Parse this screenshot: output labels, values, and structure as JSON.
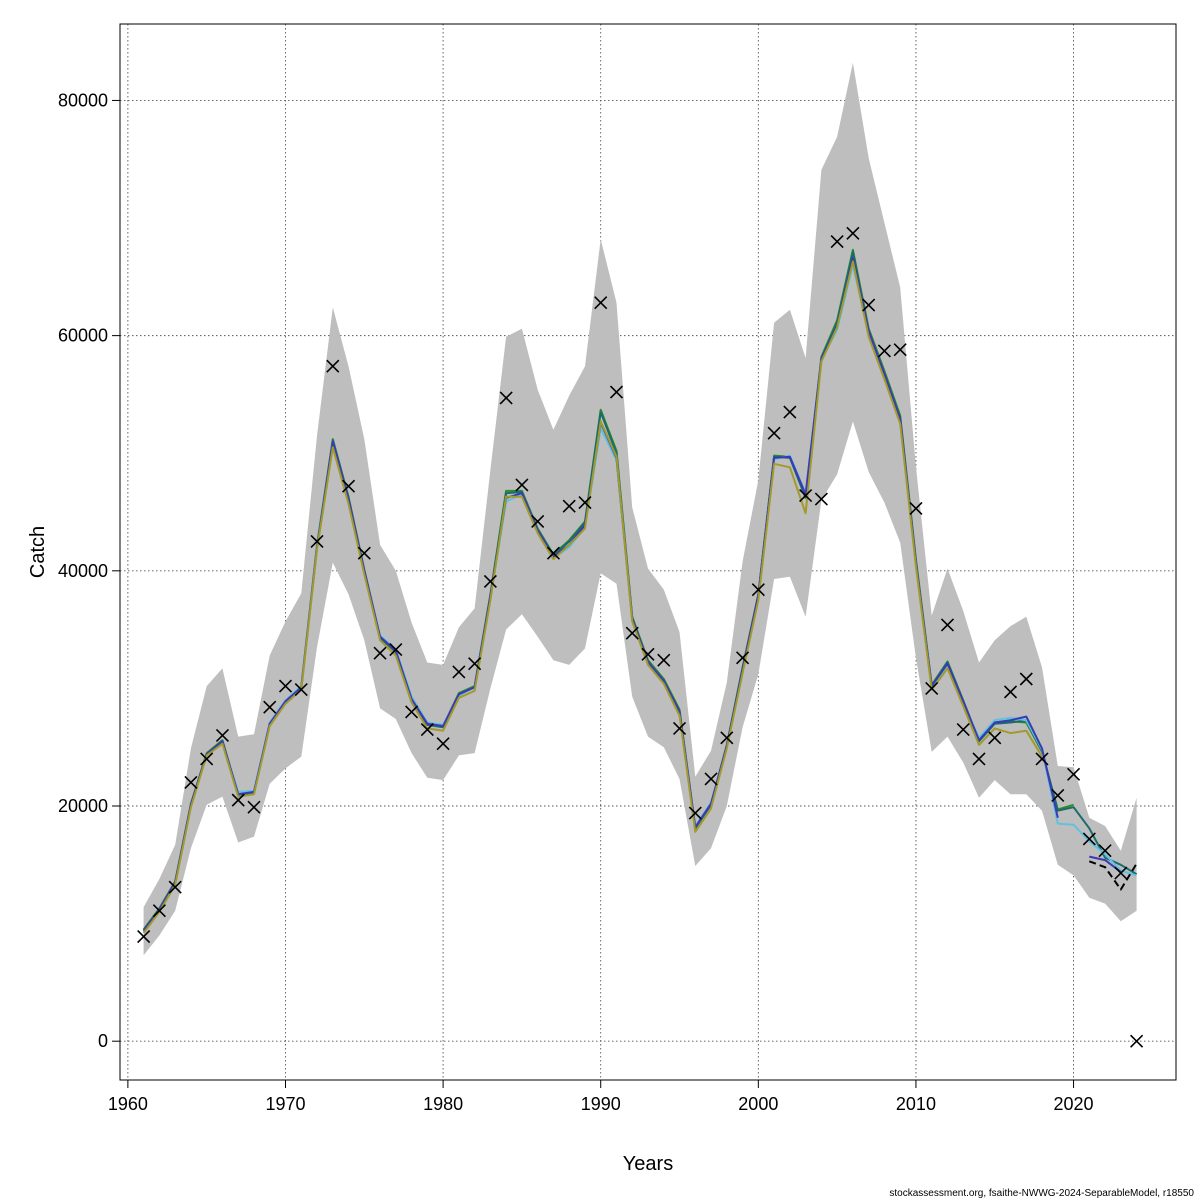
{
  "chart_data": {
    "type": "line",
    "xlabel": "Years",
    "ylabel": "Catch",
    "xlim": [
      1959.5,
      2026.5
    ],
    "ylim": [
      -3300,
      86500
    ],
    "xticks": [
      1960,
      1970,
      1980,
      1990,
      2000,
      2010,
      2020
    ],
    "yticks": [
      0,
      20000,
      40000,
      60000,
      80000
    ],
    "grid": true,
    "band_color": "#bebebe",
    "observed_marker": "x",
    "years": [
      1961,
      1962,
      1963,
      1964,
      1965,
      1966,
      1967,
      1968,
      1969,
      1970,
      1971,
      1972,
      1973,
      1974,
      1975,
      1976,
      1977,
      1978,
      1979,
      1980,
      1981,
      1982,
      1983,
      1984,
      1985,
      1986,
      1987,
      1988,
      1989,
      1990,
      1991,
      1992,
      1993,
      1994,
      1995,
      1996,
      1997,
      1998,
      1999,
      2000,
      2001,
      2002,
      2003,
      2004,
      2005,
      2006,
      2007,
      2008,
      2009,
      2010,
      2011,
      2012,
      2013,
      2014,
      2015,
      2016,
      2017,
      2018,
      2019,
      2020,
      2021,
      2022,
      2023,
      2024
    ],
    "upper": [
      11400,
      13800,
      16700,
      24900,
      30200,
      31700,
      25900,
      26100,
      32800,
      35700,
      38100,
      51500,
      62400,
      57400,
      51200,
      42200,
      40000,
      35600,
      32200,
      32000,
      35200,
      36800,
      48600,
      59900,
      60600,
      55400,
      52000,
      54900,
      57400,
      68200,
      62800,
      45400,
      40200,
      38400,
      34800,
      22500,
      24700,
      30500,
      40800,
      47700,
      61100,
      62200,
      58100,
      74100,
      76900,
      83200,
      75100,
      69600,
      64100,
      48900,
      36200,
      40200,
      36600,
      32200,
      34100,
      35300,
      36100,
      31800,
      23400,
      23300,
      19000,
      18300,
      16200,
      20700
    ],
    "lower": [
      7300,
      9000,
      11100,
      16400,
      20100,
      20800,
      16900,
      17400,
      21900,
      23200,
      24200,
      33500,
      40700,
      38000,
      34100,
      28300,
      27400,
      24500,
      22400,
      22200,
      24300,
      24500,
      30000,
      35000,
      36300,
      34400,
      32400,
      32000,
      33400,
      39800,
      38900,
      29300,
      25900,
      25000,
      22300,
      14900,
      16400,
      20000,
      26700,
      31200,
      39300,
      39500,
      36100,
      46000,
      48200,
      52700,
      48400,
      45800,
      42400,
      32600,
      24600,
      25900,
      23700,
      20700,
      22200,
      21000,
      21000,
      19600,
      15000,
      14100,
      12200,
      11700,
      10200,
      11100
    ],
    "observed": [
      8900,
      11100,
      13100,
      22000,
      24000,
      26000,
      20500,
      19900,
      28400,
      30200,
      29900,
      42500,
      57400,
      47200,
      41500,
      33000,
      33300,
      28000,
      26500,
      25300,
      31400,
      32100,
      39100,
      54700,
      47300,
      44200,
      41500,
      45500,
      45800,
      62800,
      55200,
      34700,
      32900,
      32400,
      26600,
      19400,
      22300,
      25800,
      32600,
      38400,
      51700,
      53500,
      46400,
      46100,
      68000,
      68700,
      62600,
      58700,
      58800,
      45300,
      30000,
      35400,
      26500,
      24000,
      25800,
      29700,
      30800,
      24000,
      20900,
      22700,
      17200,
      16200,
      14300,
      0
    ],
    "series": [
      {
        "color": "#2b8c2b",
        "values": [
          9500,
          11300,
          13600,
          20200,
          24500,
          25600,
          21000,
          21200,
          27000,
          28900,
          30100,
          42200,
          51200,
          46300,
          40100,
          34400,
          33200,
          29100,
          27000,
          26800,
          29600,
          30200,
          38000,
          46800,
          46800,
          43600,
          41400,
          42600,
          44200,
          53700,
          50200,
          36100,
          32400,
          30800,
          28200,
          18200,
          20200,
          25200,
          31800,
          38000,
          49800,
          49700,
          46400,
          58200,
          61300,
          67300,
          60600,
          57000,
          53200,
          41000,
          30300,
          32300,
          29000,
          25600,
          27100,
          27200,
          27100,
          24600,
          19700,
          20100,
          null,
          null,
          null,
          null
        ]
      },
      {
        "color": "#1b6b6b",
        "values": [
          9400,
          11200,
          13500,
          20100,
          24400,
          25500,
          20900,
          21100,
          26900,
          28800,
          30000,
          42000,
          51100,
          46200,
          40000,
          34300,
          33100,
          29000,
          26900,
          26700,
          29500,
          30100,
          37900,
          46600,
          46700,
          43500,
          41300,
          42500,
          44100,
          53500,
          50000,
          36000,
          32300,
          30700,
          28100,
          18100,
          20100,
          25100,
          31700,
          37900,
          49700,
          49600,
          46200,
          58000,
          61100,
          67100,
          60300,
          56800,
          53000,
          40800,
          30200,
          32200,
          28900,
          25500,
          27000,
          27100,
          27300,
          24700,
          19600,
          19900,
          18100,
          15600,
          15000,
          14200
        ]
      },
      {
        "color": "#5fc2e0",
        "values": [
          9300,
          11100,
          13400,
          20000,
          24300,
          25400,
          21200,
          21300,
          27100,
          29000,
          30200,
          42100,
          50900,
          46000,
          39900,
          34500,
          33300,
          29300,
          27100,
          26900,
          29400,
          30100,
          37700,
          45900,
          46500,
          43300,
          41100,
          42000,
          43700,
          52100,
          49400,
          35800,
          32100,
          30500,
          27900,
          18300,
          20300,
          25000,
          31500,
          37800,
          49500,
          49800,
          46600,
          57900,
          60500,
          66000,
          60200,
          56500,
          52700,
          40600,
          30100,
          32000,
          28800,
          25800,
          27300,
          27500,
          27300,
          24800,
          18500,
          18400,
          17000,
          15900,
          14500,
          14100
        ]
      },
      {
        "color": "#3a3ab8",
        "values": [
          9400,
          11200,
          13500,
          20100,
          24400,
          25500,
          21000,
          21200,
          27000,
          28900,
          30100,
          42000,
          51000,
          46100,
          40000,
          34400,
          33200,
          29100,
          27000,
          26800,
          29500,
          30100,
          37800,
          46200,
          46600,
          43400,
          41200,
          42200,
          43900,
          52600,
          49600,
          35900,
          32200,
          30600,
          28000,
          18200,
          20200,
          25100,
          31600,
          37900,
          49600,
          49700,
          46500,
          58000,
          60800,
          66600,
          60400,
          56700,
          52900,
          40700,
          30200,
          32100,
          28900,
          25600,
          27100,
          27300,
          27600,
          24900,
          19000,
          null,
          15700,
          15400,
          14400,
          null
        ]
      },
      {
        "color": "#a39a2b",
        "values": [
          9200,
          11000,
          13300,
          19900,
          24300,
          25300,
          20800,
          21000,
          26800,
          28700,
          29900,
          41800,
          50500,
          45700,
          39700,
          34100,
          32800,
          28800,
          26600,
          26400,
          29200,
          29800,
          37500,
          46300,
          46300,
          43200,
          41000,
          42200,
          43600,
          52700,
          49700,
          35700,
          32000,
          30400,
          27700,
          17800,
          19800,
          24900,
          31300,
          37500,
          49100,
          48800,
          44900,
          57800,
          60700,
          66300,
          59900,
          56300,
          52500,
          40400,
          29900,
          31700,
          28500,
          25200,
          26600,
          26200,
          26400,
          24200,
          null,
          null,
          null,
          null,
          null,
          null
        ]
      },
      {
        "color": "#000000",
        "dash": true,
        "values": [
          null,
          null,
          null,
          null,
          null,
          null,
          null,
          null,
          null,
          null,
          null,
          null,
          null,
          null,
          null,
          null,
          null,
          null,
          null,
          null,
          null,
          null,
          null,
          null,
          null,
          null,
          null,
          null,
          null,
          null,
          null,
          null,
          null,
          null,
          null,
          null,
          null,
          null,
          null,
          null,
          null,
          null,
          null,
          null,
          null,
          null,
          null,
          null,
          null,
          null,
          null,
          null,
          null,
          null,
          null,
          null,
          null,
          null,
          null,
          null,
          15300,
          14800,
          12900,
          15100
        ]
      }
    ]
  },
  "footer": "stockassessment.org, fsaithe-NWWG-2024-SeparableModel, r18550"
}
